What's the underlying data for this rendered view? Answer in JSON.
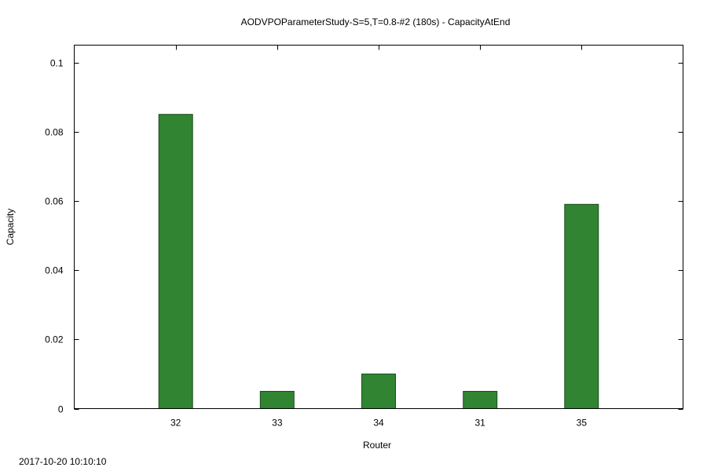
{
  "chart_data": {
    "type": "bar",
    "title": "AODVPOParameterStudy-S=5,T=0.8-#2 (180s) - CapacityAtEnd",
    "xlabel": "Router",
    "ylabel": "Capacity",
    "categories": [
      "32",
      "33",
      "34",
      "31",
      "35"
    ],
    "values": [
      0.085,
      0.005,
      0.01,
      0.005,
      0.059
    ],
    "ylim": [
      0,
      0.105
    ],
    "yticks": [
      0,
      0.02,
      0.04,
      0.06,
      0.08,
      0.1
    ],
    "ytick_labels": [
      "0",
      "0.02",
      "0.04",
      "0.06",
      "0.08",
      "0.1"
    ],
    "grid": false,
    "bar_color": "#318431",
    "bar_edge_color": "#1a4d1a"
  },
  "footer": {
    "timestamp": "2017-10-20 10:10:10"
  }
}
